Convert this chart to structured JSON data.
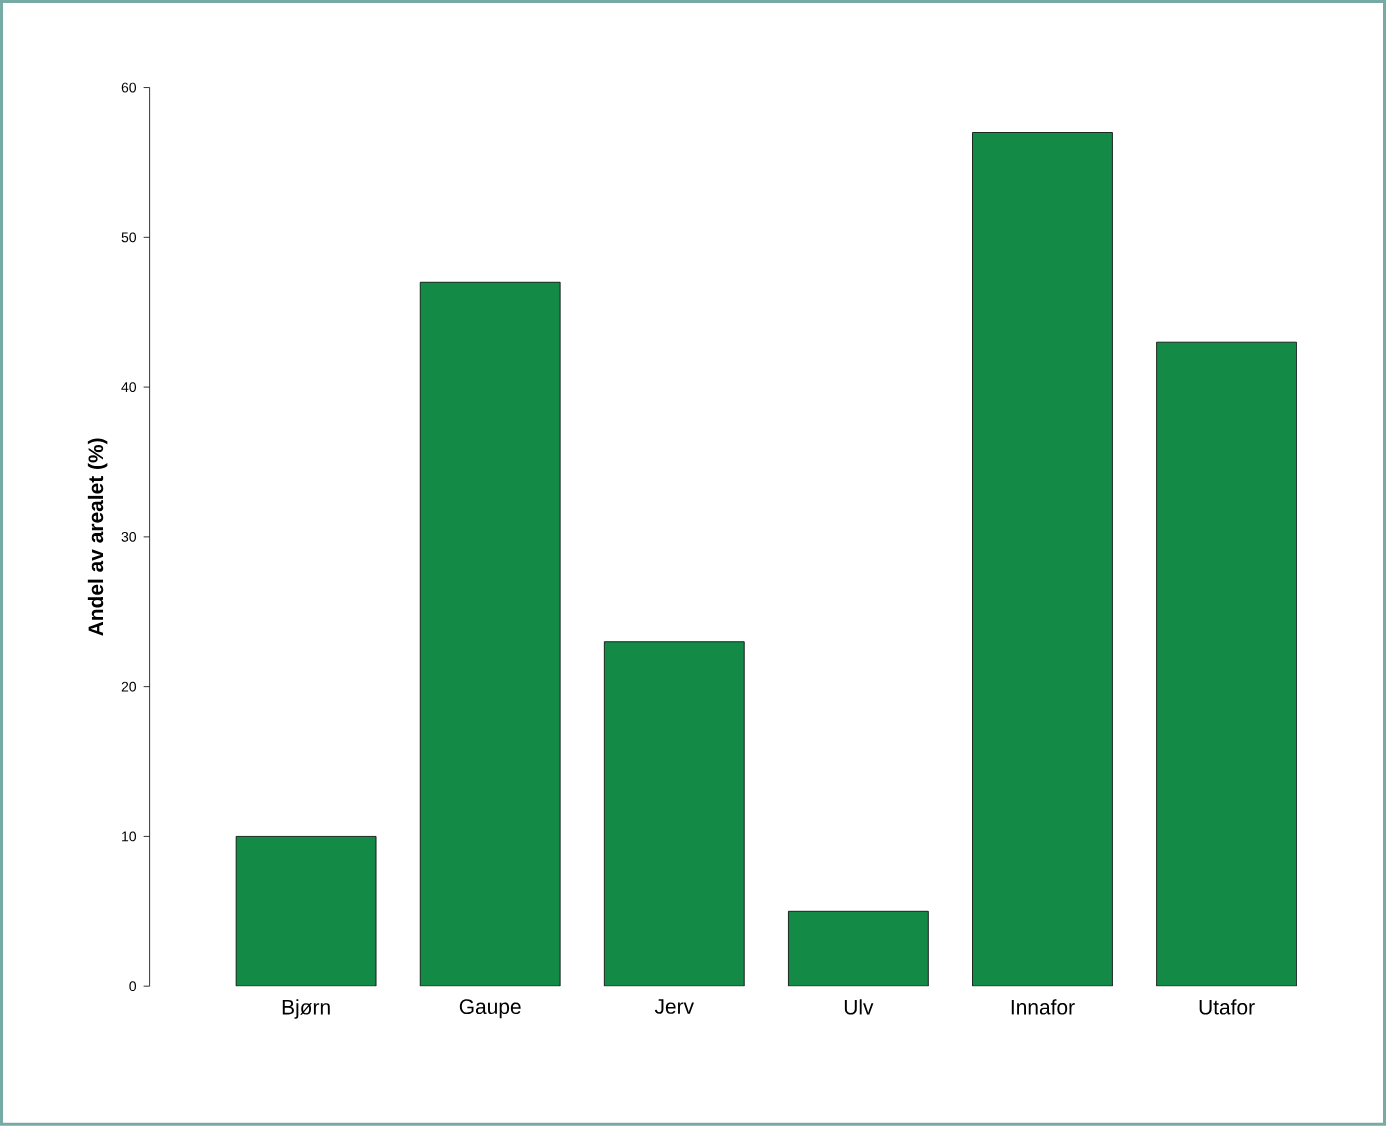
{
  "chart_data": {
    "type": "bar",
    "ylabel": "Andel av arealet (%)",
    "categories": [
      "Bjørn",
      "Gaupe",
      "Jerv",
      "Ulv",
      "Innafor",
      "Utafor"
    ],
    "values": [
      10,
      47,
      23,
      5,
      57,
      43
    ],
    "color": "#138a46",
    "ylim": [
      0,
      60
    ],
    "yticks": [
      0,
      10,
      20,
      30,
      40,
      50,
      60
    ]
  }
}
